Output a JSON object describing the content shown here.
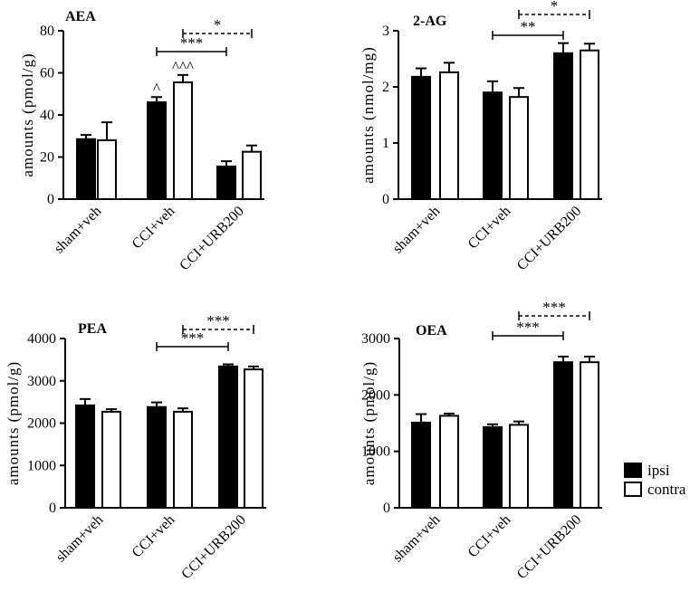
{
  "chart_data": [
    {
      "type": "bar",
      "title": "AEA",
      "ylabel": "amounts (pmol/g)",
      "ylim": [
        0,
        80
      ],
      "yticks": [
        0,
        20,
        40,
        60,
        80
      ],
      "categories": [
        "sham+veh",
        "CCI+veh",
        "CCI+URB200"
      ],
      "series": [
        {
          "name": "ipsi",
          "values": [
            28.5,
            46,
            15.5
          ],
          "errors": [
            2,
            2.5,
            2.5
          ]
        },
        {
          "name": "contra",
          "values": [
            28,
            55.5,
            22.5
          ],
          "errors": [
            8.5,
            3.5,
            3
          ]
        }
      ],
      "annotations": [
        {
          "text": "^",
          "category": 1,
          "series": 0
        },
        {
          "text": "^^^",
          "category": 1,
          "series": 1
        }
      ],
      "significance": [
        {
          "text": "***",
          "from": [
            1,
            0
          ],
          "to": [
            2,
            0
          ],
          "style": "solid",
          "level": 0
        },
        {
          "text": "*",
          "from": [
            1,
            1
          ],
          "to": [
            2,
            1
          ],
          "style": "dashed",
          "level": 1
        }
      ]
    },
    {
      "type": "bar",
      "title": "2-AG",
      "ylabel": "amounts (nmol/mg)",
      "ylim": [
        0,
        3
      ],
      "yticks": [
        0,
        1,
        2,
        3
      ],
      "categories": [
        "sham+veh",
        "CCI+veh",
        "CCI+URB200"
      ],
      "series": [
        {
          "name": "ipsi",
          "values": [
            2.18,
            1.9,
            2.6
          ],
          "errors": [
            0.15,
            0.2,
            0.18
          ]
        },
        {
          "name": "contra",
          "values": [
            2.26,
            1.82,
            2.65
          ],
          "errors": [
            0.17,
            0.16,
            0.12
          ]
        }
      ],
      "annotations": [],
      "significance": [
        {
          "text": "**",
          "from": [
            1,
            0
          ],
          "to": [
            2,
            0
          ],
          "style": "solid",
          "level": 0
        },
        {
          "text": "*",
          "from": [
            1,
            1
          ],
          "to": [
            2,
            1
          ],
          "style": "dashed",
          "level": 1
        }
      ]
    },
    {
      "type": "bar",
      "title": "PEA",
      "ylabel": "amounts (pmol/g)",
      "ylim": [
        0,
        4000
      ],
      "yticks": [
        0,
        1000,
        2000,
        3000,
        4000
      ],
      "categories": [
        "sham+veh",
        "CCI+veh",
        "CCI+URB200"
      ],
      "series": [
        {
          "name": "ipsi",
          "values": [
            2420,
            2380,
            3340
          ],
          "errors": [
            150,
            110,
            50
          ]
        },
        {
          "name": "contra",
          "values": [
            2270,
            2270,
            3270
          ],
          "errors": [
            60,
            80,
            70
          ]
        }
      ],
      "annotations": [],
      "significance": [
        {
          "text": "***",
          "from": [
            1,
            0
          ],
          "to": [
            2,
            0
          ],
          "style": "solid",
          "level": 0
        },
        {
          "text": "***",
          "from": [
            1,
            1
          ],
          "to": [
            2,
            1
          ],
          "style": "dashed",
          "level": 1
        }
      ]
    },
    {
      "type": "bar",
      "title": "OEA",
      "ylabel": "amounts (pmol/g)",
      "ylim": [
        0,
        3000
      ],
      "yticks": [
        0,
        1000,
        2000,
        3000
      ],
      "categories": [
        "sham+veh",
        "CCI+veh",
        "CCI+URB200"
      ],
      "series": [
        {
          "name": "ipsi",
          "values": [
            1510,
            1430,
            2580
          ],
          "errors": [
            150,
            50,
            100
          ]
        },
        {
          "name": "contra",
          "values": [
            1630,
            1470,
            2580
          ],
          "errors": [
            40,
            60,
            100
          ]
        }
      ],
      "annotations": [],
      "significance": [
        {
          "text": "***",
          "from": [
            1,
            0
          ],
          "to": [
            2,
            0
          ],
          "style": "solid",
          "level": 0
        },
        {
          "text": "***",
          "from": [
            1,
            1
          ],
          "to": [
            2,
            1
          ],
          "style": "dashed",
          "level": 1
        }
      ]
    }
  ],
  "legend": {
    "placement": "right",
    "items": [
      {
        "label": "ipsi",
        "color": "#000000"
      },
      {
        "label": "contra",
        "color": "#ffffff"
      }
    ]
  }
}
